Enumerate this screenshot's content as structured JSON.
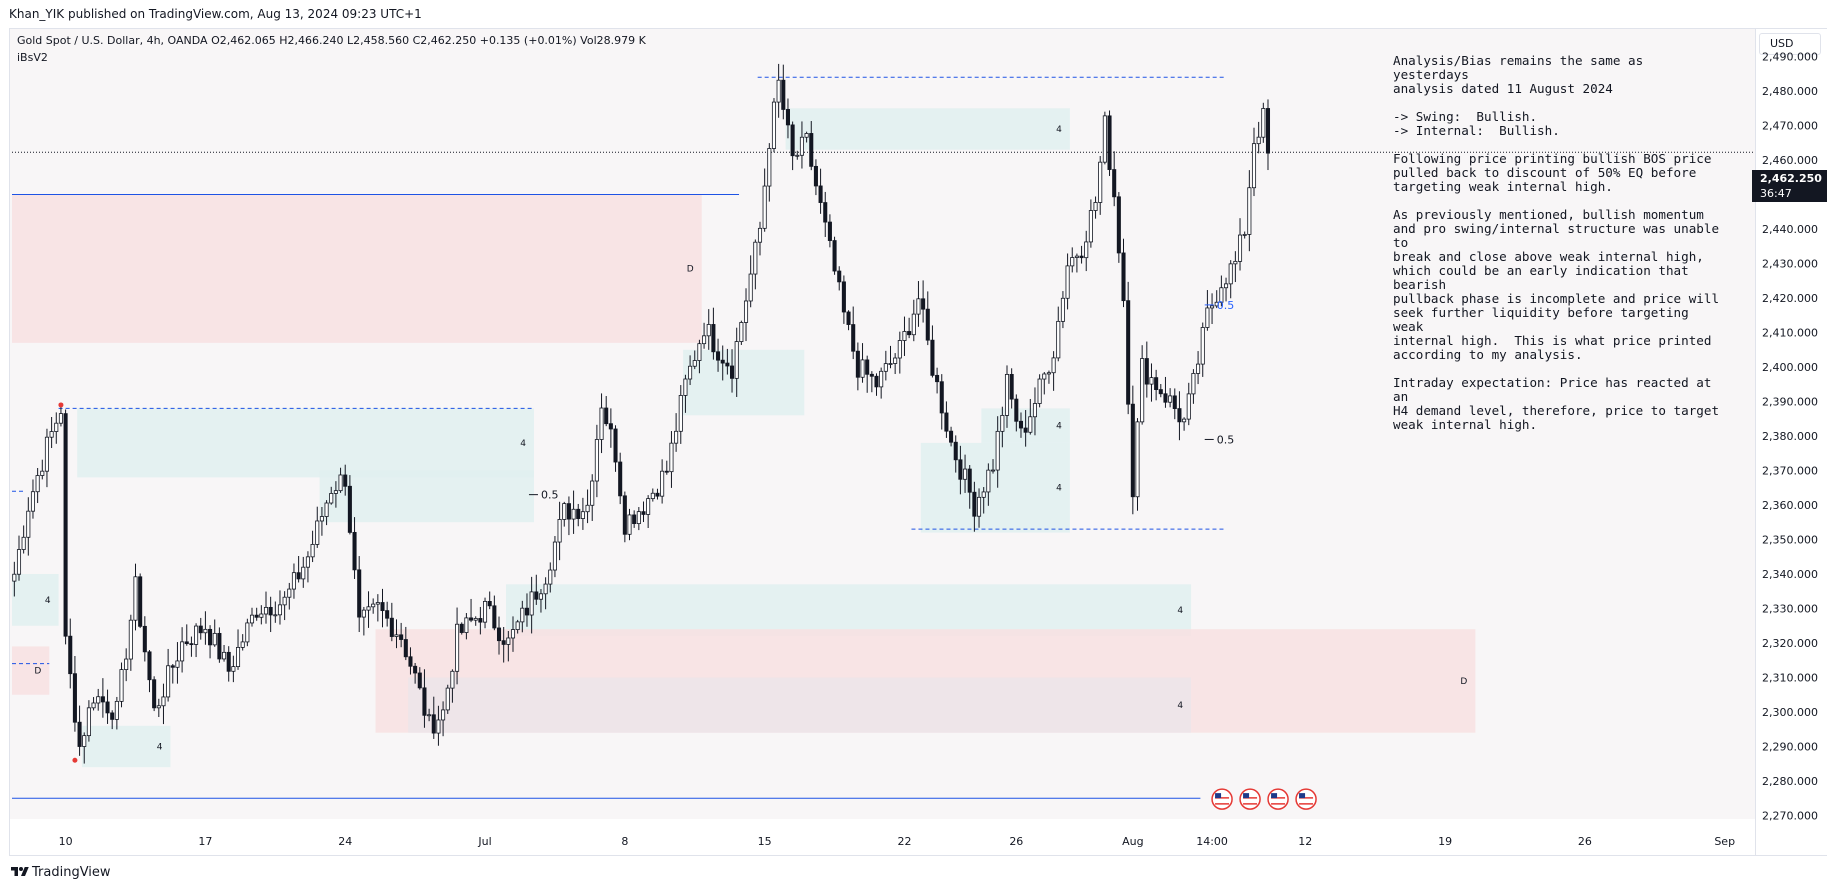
{
  "header": {
    "publisher_line": "Khan_YIK published on TradingView.com, Aug 13, 2024 09:23 UTC+1"
  },
  "legend": {
    "symbol_line": "Gold Spot / U.S. Dollar, 4h, OANDA  O2,462.065  H2,466.240  L2,458.560  C2,462.250  +0.135 (+0.01%)  Vol28.979 K",
    "indicator": "iBsV2"
  },
  "price_axis": {
    "currency": "USD",
    "current_price": "2,462.250",
    "countdown": "36:47"
  },
  "analysis_paragraphs": [
    "Analysis/Bias remains the same as yesterdays\nanalysis dated 11 August 2024",
    "-> Swing:  Bullish.\n-> Internal:  Bullish.",
    "Following price printing bullish BOS price\npulled back to discount of 50% EQ before\ntargeting weak internal high.",
    "As previously mentioned, bullish momentum\nand pro swing/internal structure was unable to\nbreak and close above weak internal high,\nwhich could be an early indication that bearish\npullback phase is incomplete and price will\nseek further liquidity before targeting weak\ninternal high.  This is what price printed\naccording to my analysis.",
    "Intraday expectation: Price has reacted at an\nH4 demand level, therefore, price to target\nweak internal high."
  ],
  "footer": {
    "brand": "TradingView"
  },
  "colors": {
    "bull": "#131722",
    "bear": "#131722",
    "zone_demand": "#e0f0f0",
    "zone_supply": "#f8e1e2",
    "zone_overlap": "#ece5ea",
    "level_line": "#1e53e5",
    "label_blue": "#2962ff"
  },
  "chart_data": {
    "type": "candlestick",
    "title": "",
    "timeframe": "4h",
    "ylim": [
      2265,
      2497
    ],
    "y_ticks": [
      2270,
      2280,
      2290,
      2300,
      2310,
      2320,
      2330,
      2340,
      2350,
      2360,
      2370,
      2380,
      2390,
      2400,
      2410,
      2420,
      2430,
      2440,
      2450,
      2460,
      2470,
      2480,
      2490
    ],
    "y_tick_labels": [
      "2,270.000",
      "2,280.000",
      "2,290.000",
      "2,300.000",
      "2,310.000",
      "2,320.000",
      "2,330.000",
      "2,340.000",
      "2,350.000",
      "2,360.000",
      "2,370.000",
      "2,380.000",
      "2,390.000",
      "2,400.000",
      "2,410.000",
      "2,420.000",
      "2,430.000",
      "2,440.000",
      "2,450.000",
      "2,460.000",
      "2,470.000",
      "2,480.000",
      "2,490.000"
    ],
    "x_ticks": [
      {
        "label": "10",
        "bar": 11
      },
      {
        "label": "17",
        "bar": 41
      },
      {
        "label": "24",
        "bar": 71
      },
      {
        "label": "Jul",
        "bar": 101
      },
      {
        "label": "8",
        "bar": 131
      },
      {
        "label": "15",
        "bar": 161
      },
      {
        "label": "22",
        "bar": 191
      },
      {
        "label": "26",
        "bar": 215
      },
      {
        "label": "Aug",
        "bar": 240
      },
      {
        "label": "14:00",
        "bar": 257
      },
      {
        "label": "12",
        "bar": 277
      },
      {
        "label": "19",
        "bar": 307
      },
      {
        "label": "26",
        "bar": 337
      },
      {
        "label": "Sep",
        "bar": 367
      }
    ],
    "bars_total": 374,
    "anchors": [
      {
        "bar": 0,
        "price": 2340
      },
      {
        "bar": 3,
        "price": 2360
      },
      {
        "bar": 7,
        "price": 2377
      },
      {
        "bar": 10,
        "price": 2388
      },
      {
        "bar": 11,
        "price": 2320
      },
      {
        "bar": 14,
        "price": 2290
      },
      {
        "bar": 17,
        "price": 2305
      },
      {
        "bar": 22,
        "price": 2300
      },
      {
        "bar": 26,
        "price": 2336
      },
      {
        "bar": 30,
        "price": 2300
      },
      {
        "bar": 36,
        "price": 2320
      },
      {
        "bar": 41,
        "price": 2325
      },
      {
        "bar": 46,
        "price": 2312
      },
      {
        "bar": 52,
        "price": 2330
      },
      {
        "bar": 58,
        "price": 2332
      },
      {
        "bar": 63,
        "price": 2345
      },
      {
        "bar": 68,
        "price": 2365
      },
      {
        "bar": 71,
        "price": 2368
      },
      {
        "bar": 74,
        "price": 2325
      },
      {
        "bar": 78,
        "price": 2330
      },
      {
        "bar": 83,
        "price": 2322
      },
      {
        "bar": 86,
        "price": 2310
      },
      {
        "bar": 89,
        "price": 2296
      },
      {
        "bar": 92,
        "price": 2300
      },
      {
        "bar": 95,
        "price": 2322
      },
      {
        "bar": 101,
        "price": 2330
      },
      {
        "bar": 106,
        "price": 2320
      },
      {
        "bar": 110,
        "price": 2330
      },
      {
        "bar": 114,
        "price": 2340
      },
      {
        "bar": 118,
        "price": 2358
      },
      {
        "bar": 123,
        "price": 2360
      },
      {
        "bar": 126,
        "price": 2390
      },
      {
        "bar": 129,
        "price": 2375
      },
      {
        "bar": 131,
        "price": 2355
      },
      {
        "bar": 135,
        "price": 2360
      },
      {
        "bar": 140,
        "price": 2370
      },
      {
        "bar": 144,
        "price": 2395
      },
      {
        "bar": 148,
        "price": 2412
      },
      {
        "bar": 151,
        "price": 2405
      },
      {
        "bar": 154,
        "price": 2400
      },
      {
        "bar": 157,
        "price": 2420
      },
      {
        "bar": 160,
        "price": 2440
      },
      {
        "bar": 162,
        "price": 2466
      },
      {
        "bar": 164,
        "price": 2482
      },
      {
        "bar": 167,
        "price": 2460
      },
      {
        "bar": 170,
        "price": 2465
      },
      {
        "bar": 174,
        "price": 2440
      },
      {
        "bar": 178,
        "price": 2415
      },
      {
        "bar": 181,
        "price": 2400
      },
      {
        "bar": 185,
        "price": 2395
      },
      {
        "bar": 190,
        "price": 2405
      },
      {
        "bar": 194,
        "price": 2420
      },
      {
        "bar": 197,
        "price": 2400
      },
      {
        "bar": 201,
        "price": 2378
      },
      {
        "bar": 206,
        "price": 2360
      },
      {
        "bar": 210,
        "price": 2372
      },
      {
        "bar": 213,
        "price": 2395
      },
      {
        "bar": 216,
        "price": 2380
      },
      {
        "bar": 219,
        "price": 2390
      },
      {
        "bar": 223,
        "price": 2405
      },
      {
        "bar": 226,
        "price": 2430
      },
      {
        "bar": 229,
        "price": 2435
      },
      {
        "bar": 232,
        "price": 2448
      },
      {
        "bar": 234,
        "price": 2470
      },
      {
        "bar": 236,
        "price": 2450
      },
      {
        "bar": 238,
        "price": 2420
      },
      {
        "bar": 240,
        "price": 2365
      },
      {
        "bar": 242,
        "price": 2400
      },
      {
        "bar": 245,
        "price": 2395
      },
      {
        "bar": 248,
        "price": 2390
      },
      {
        "bar": 251,
        "price": 2384
      },
      {
        "bar": 253,
        "price": 2395
      },
      {
        "bar": 256,
        "price": 2415
      },
      {
        "bar": 259,
        "price": 2425
      },
      {
        "bar": 262,
        "price": 2430
      },
      {
        "bar": 264,
        "price": 2440
      },
      {
        "bar": 266,
        "price": 2466
      },
      {
        "bar": 268,
        "price": 2472
      },
      {
        "bar": 269,
        "price": 2462
      }
    ],
    "zones": [
      {
        "kind": "supply",
        "from_bar": 0,
        "to_bar": 148,
        "top": 2450,
        "bottom": 2407,
        "label": "D"
      },
      {
        "kind": "demand",
        "from_bar": 14,
        "to_bar": 112,
        "top": 2388,
        "bottom": 2368,
        "label": "4"
      },
      {
        "kind": "demand",
        "from_bar": 66,
        "to_bar": 112,
        "top": 2370,
        "bottom": 2355,
        "label": ""
      },
      {
        "kind": "demand",
        "from_bar": 0,
        "to_bar": 10,
        "top": 2340,
        "bottom": 2325,
        "label": "4"
      },
      {
        "kind": "supply",
        "from_bar": 0,
        "to_bar": 8,
        "top": 2319,
        "bottom": 2305,
        "label": "D"
      },
      {
        "kind": "demand",
        "from_bar": 15,
        "to_bar": 34,
        "top": 2296,
        "bottom": 2284,
        "label": "4"
      },
      {
        "kind": "demand",
        "from_bar": 144,
        "to_bar": 170,
        "top": 2405,
        "bottom": 2386,
        "label": ""
      },
      {
        "kind": "demand",
        "from_bar": 166,
        "to_bar": 227,
        "top": 2475,
        "bottom": 2463,
        "label": "4"
      },
      {
        "kind": "demand",
        "from_bar": 208,
        "to_bar": 227,
        "top": 2388,
        "bottom": 2378,
        "label": "4"
      },
      {
        "kind": "demand",
        "from_bar": 195,
        "to_bar": 227,
        "top": 2378,
        "bottom": 2352,
        "label": "4"
      },
      {
        "kind": "demand",
        "from_bar": 106,
        "to_bar": 253,
        "top": 2337,
        "bottom": 2322,
        "label": "4"
      },
      {
        "kind": "supply",
        "from_bar": 78,
        "to_bar": 314,
        "top": 2324,
        "bottom": 2294,
        "label": "D"
      },
      {
        "kind": "overlap",
        "from_bar": 85,
        "to_bar": 253,
        "top": 2310,
        "bottom": 2294,
        "label": "4"
      }
    ],
    "lines": [
      {
        "style": "solid",
        "price": 2450,
        "from_bar": 0,
        "to_bar": 156,
        "color": "#1e53e5"
      },
      {
        "style": "solid",
        "price": 2275,
        "from_bar": 0,
        "to_bar": 255,
        "color": "#1e53e5"
      },
      {
        "style": "dashed",
        "price": 2484,
        "from_bar": 160,
        "to_bar": 260,
        "color": "#1e53e5"
      },
      {
        "style": "dashed",
        "price": 2388,
        "from_bar": 10,
        "to_bar": 112,
        "color": "#1e53e5"
      },
      {
        "style": "dashed",
        "price": 2353,
        "from_bar": 193,
        "to_bar": 260,
        "color": "#1e53e5"
      },
      {
        "style": "dashed",
        "price": 2364,
        "from_bar": 0,
        "to_bar": 3,
        "color": "#1e53e5"
      },
      {
        "style": "dashed",
        "price": 2314,
        "from_bar": 0,
        "to_bar": 8,
        "color": "#1e53e5"
      },
      {
        "style": "dotted",
        "price": 2462.25,
        "from_bar": 0,
        "to_bar": 374,
        "color": "#131722"
      }
    ],
    "annotations": [
      {
        "text": "0.5",
        "bar": 258,
        "price": 2418,
        "color": "#2962ff"
      },
      {
        "text": "0.5",
        "bar": 258,
        "price": 2379,
        "color": "#131722"
      },
      {
        "text": "0.5",
        "bar": 113,
        "price": 2363,
        "color": "#131722"
      }
    ],
    "swing_points": [
      {
        "bar": 10,
        "price": 2389
      },
      {
        "bar": 13,
        "price": 2286
      }
    ],
    "event_markers": {
      "count": 4,
      "from_bar": 257,
      "price": 2273
    }
  }
}
